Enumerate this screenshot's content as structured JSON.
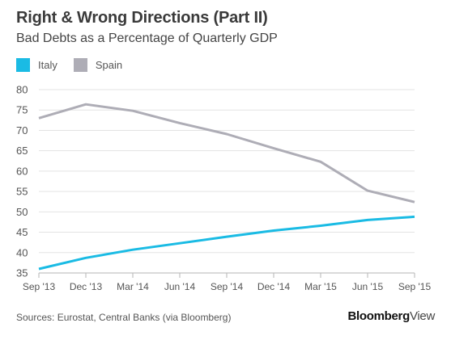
{
  "header": {
    "title": "Right & Wrong Directions (Part II)",
    "subtitle": "Bad Debts as a Percentage of Quarterly GDP"
  },
  "legend": [
    {
      "label": "Italy",
      "color": "#1abbe4"
    },
    {
      "label": "Spain",
      "color": "#aeadb6"
    }
  ],
  "footer": {
    "source": "Sources: Eurostat, Central Banks (via Bloomberg)",
    "brand_bold": "Bloomberg",
    "brand_light": "View"
  },
  "chart_data": {
    "type": "line",
    "x": [
      "Sep '13",
      "Dec '13",
      "Mar '14",
      "Jun '14",
      "Sep '14",
      "Dec '14",
      "Mar '15",
      "Jun '15",
      "Sep '15"
    ],
    "series": [
      {
        "name": "Italy",
        "color": "#1abbe4",
        "values": [
          36.0,
          38.7,
          40.7,
          42.3,
          43.9,
          45.4,
          46.6,
          48.0,
          48.8
        ]
      },
      {
        "name": "Spain",
        "color": "#aeadb6",
        "values": [
          73.0,
          76.4,
          74.8,
          71.8,
          69.1,
          65.6,
          62.3,
          55.2,
          52.4
        ]
      }
    ],
    "yticks": [
      35,
      40,
      45,
      50,
      55,
      60,
      65,
      70,
      75,
      80
    ],
    "ylim": [
      35,
      80
    ],
    "grid": true,
    "legend_position": "top-left"
  }
}
